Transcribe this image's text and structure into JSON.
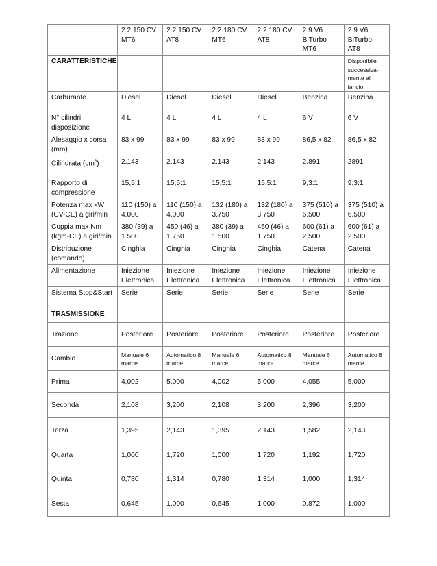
{
  "columns": [
    "2.2 150 CV MT6",
    "2.2 150 CV AT8",
    "2.2 180 CV MT6",
    "2.2 180 CV AT8",
    "2.9 V6 BiTurbo MT6",
    "2.9 V6 BiTurbo AT8"
  ],
  "column_lines": [
    [
      "2.2 150 CV",
      "MT6"
    ],
    [
      "2.2 150 CV",
      "AT8"
    ],
    [
      "2.2 180 CV",
      "MT6"
    ],
    [
      "2.2 180 CV",
      "AT8"
    ],
    [
      "2.9 V6",
      "BiTurbo",
      "MT6"
    ],
    [
      "2.9 V6",
      "BiTurbo",
      "AT8"
    ]
  ],
  "sections": [
    {
      "title": "CARATTERISTICHE",
      "note_last_col": "Disponibile successiva-mente al lancio"
    },
    {
      "title": "TRASMISSIONE"
    }
  ],
  "rows": [
    {
      "label": "Carburante",
      "values": [
        "Diesel",
        "Diesel",
        "Diesel",
        "Diesel",
        "Benzina",
        "Benzina"
      ]
    },
    {
      "label": "N° cilindri, disposizione",
      "values": [
        "4 L",
        "4 L",
        "4 L",
        "4 L",
        "6 V",
        "6 V"
      ]
    },
    {
      "label": "Alesaggio x corsa (mm)",
      "values": [
        "83 x 99",
        "83 x 99",
        "83 x 99",
        "83 x 99",
        "86,5 x 82",
        "86,5 x 82"
      ]
    },
    {
      "label": "Cilindrata (cm",
      "label_sup": "3",
      "label_end": ")",
      "values": [
        "2.143",
        "2.143",
        "2.143",
        "2.143",
        "2.891",
        "2891"
      ]
    },
    {
      "label": "Rapporto di compressione",
      "values": [
        "15,5:1",
        "15,5:1",
        "15,5:1",
        "15,5:1",
        "9,3:1",
        "9,3:1"
      ]
    },
    {
      "label": "Potenza max kW (CV-CE) a giri/min",
      "values": [
        "110 (150) a 4.000",
        "110 (150) a 4.000",
        "132 (180) a 3.750",
        "132 (180) a 3.750",
        "375 (510) a 6.500",
        "375 (510) a 6.500"
      ]
    },
    {
      "label": "Coppia max Nm (kgm-CE) a giri/min",
      "values": [
        "380 (39) a 1.500",
        "450 (46) a 1.750",
        "380 (39) a 1.500",
        "450 (46) a 1.750",
        "600 (61) a 2.500",
        "600 (61) a 2.500"
      ]
    },
    {
      "label": "Distribuzione (comando)",
      "values": [
        "Cinghia",
        "Cinghia",
        "Cinghia",
        "Cinghia",
        "Catena",
        "Catena"
      ]
    },
    {
      "label": "Alimentazione",
      "values": [
        "Iniezione Elettronica",
        "Iniezione Elettronica",
        "Iniezione Elettronica",
        "Iniezione Elettronica",
        "Iniezione Elettronica",
        "Iniezione Elettronica"
      ]
    },
    {
      "label": "Sistema Stop&Start",
      "values": [
        "Serie",
        "Serie",
        "Serie",
        "Serie",
        "Serie",
        "Serie"
      ]
    }
  ],
  "trans_rows": [
    {
      "label": "Trazione",
      "values": [
        "Posteriore",
        "Posteriore",
        "Posteriore",
        "Posteriore",
        "Posteriore",
        "Posteriore"
      ]
    },
    {
      "label": "Cambio",
      "small": true,
      "values": [
        "Manuale 6 marce",
        "Automatico 8 marce",
        "Manuale 6 marce",
        "Automatico 8 marce",
        "Manuale 6 marce",
        "Automatico 8 marce"
      ]
    },
    {
      "label": "Prima",
      "values": [
        "4,002",
        "5,000",
        "4,002",
        "5,000",
        "4,055",
        "5,000"
      ]
    },
    {
      "label": "Seconda",
      "values": [
        "2,108",
        "3,200",
        "2,108",
        "3,200",
        "2,396",
        "3,200"
      ]
    },
    {
      "label": "Terza",
      "values": [
        "1,395",
        "2,143",
        "1,395",
        "2,143",
        "1,582",
        "2,143"
      ]
    },
    {
      "label": "Quarta",
      "values": [
        "1,000",
        "1,720",
        "1,000",
        "1,720",
        "1,192",
        "1,720"
      ]
    },
    {
      "label": "Quinta",
      "values": [
        "0,780",
        "1,314",
        "0,780",
        "1,314",
        "1,000",
        "1,314"
      ]
    },
    {
      "label": "Sesta",
      "values": [
        "0,645",
        "1,000",
        "0,645",
        "1,000",
        "0,872",
        "1,000"
      ]
    }
  ]
}
